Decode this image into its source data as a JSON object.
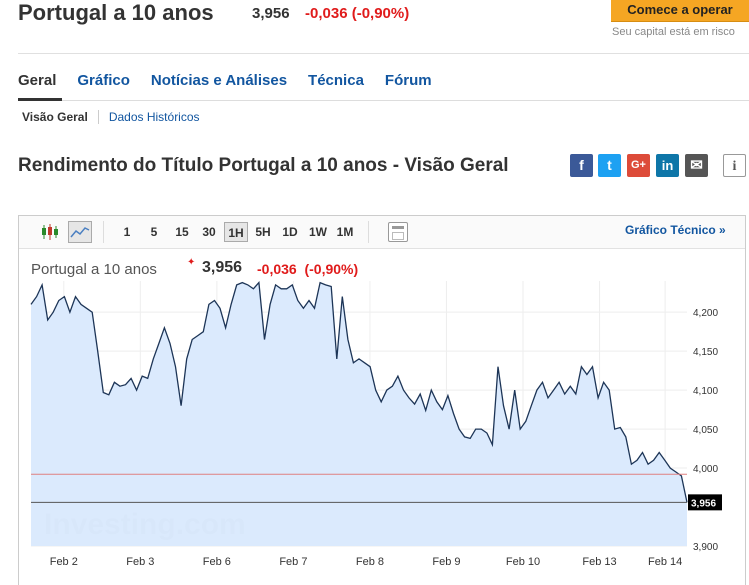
{
  "header": {
    "title": "Portugal a 10 anos",
    "price": "3,956",
    "change": "-0,036 (-0,90%)",
    "cta_label": "Comece a operar",
    "cta_sub": "Seu capital está em risco"
  },
  "tabs": [
    {
      "label": "Geral",
      "active": true
    },
    {
      "label": "Gráfico",
      "active": false
    },
    {
      "label": "Notícias e Análises",
      "active": false
    },
    {
      "label": "Técnica",
      "active": false
    },
    {
      "label": "Fórum",
      "active": false
    }
  ],
  "subnav": {
    "active": "Visão Geral",
    "link": "Dados Históricos"
  },
  "section": {
    "title": "Rendimento do Título Portugal a 10 anos - Visão Geral"
  },
  "share": [
    {
      "icon": "facebook-icon",
      "glyph": "f",
      "color": "#3b5998"
    },
    {
      "icon": "twitter-icon",
      "glyph": "t",
      "color": "#1da1f2"
    },
    {
      "icon": "google-plus-icon",
      "glyph": "G+",
      "color": "#dd4b39"
    },
    {
      "icon": "linkedin-icon",
      "glyph": "in",
      "color": "#0e76a8"
    },
    {
      "icon": "email-icon",
      "glyph": "✉",
      "color": "#555555"
    },
    {
      "icon": "info-icon",
      "glyph": "i",
      "color": "#ffffff"
    }
  ],
  "toolbar": {
    "chart_types": [
      "candlestick-icon",
      "area-chart-icon"
    ],
    "timeframes": [
      "1",
      "5",
      "15",
      "30",
      "1H",
      "5H",
      "1D",
      "1W",
      "1M"
    ],
    "selected_timeframe": "1H",
    "technical_link": "Gráfico Técnico »"
  },
  "legend": {
    "name": "Portugal a 10 anos",
    "price": "3,956",
    "change": "-0,036",
    "change_pct": "(-0,90%)"
  },
  "colors": {
    "accent": "#1256a0",
    "negative": "#e01b1b",
    "cta": "#f5a623",
    "area_fill": "#d9e9fd",
    "line": "#1d3557"
  },
  "watermark": "Investing.com",
  "chart_data": {
    "type": "area",
    "title": "",
    "xlabel": "",
    "ylabel": "",
    "x_tick_labels": [
      "Feb 2",
      "Feb 3",
      "Feb 6",
      "Feb 7",
      "Feb 8",
      "Feb 9",
      "Feb 10",
      "Feb 13",
      "Feb 14"
    ],
    "x_tick_positions": [
      3,
      10,
      17,
      24,
      31,
      38,
      45,
      52,
      58
    ],
    "y_ticks": [
      3.9,
      4.0,
      4.05,
      4.1,
      4.15,
      4.2
    ],
    "y_tick_labels": [
      "3,900",
      "4,000",
      "4,050",
      "4,100",
      "4,150",
      "4,200"
    ],
    "ylim": [
      3.9,
      4.24
    ],
    "xlim": [
      0,
      60
    ],
    "current_value": 3.956,
    "current_label": "3,956",
    "reference_value": 3.992,
    "grid": true,
    "series": [
      {
        "values": [
          4.21,
          4.22,
          4.235,
          4.19,
          4.2,
          4.215,
          4.22,
          4.2,
          4.22,
          4.21,
          4.205,
          4.2,
          4.15,
          4.097,
          4.094,
          4.11,
          4.105,
          4.107,
          4.115,
          4.1,
          4.118,
          4.115,
          4.14,
          4.16,
          4.18,
          4.16,
          4.13,
          4.08,
          4.14,
          4.165,
          4.17,
          4.175,
          4.21,
          4.215,
          4.205,
          4.18,
          4.21,
          4.235,
          4.238,
          4.235,
          4.23,
          4.238,
          4.165,
          4.21,
          4.235,
          4.23,
          4.23,
          4.235,
          4.215,
          4.205,
          4.215,
          4.205,
          4.238,
          4.235,
          4.233,
          4.14,
          4.22,
          4.165,
          4.135,
          4.14,
          4.135,
          4.13,
          4.1,
          4.085,
          4.1,
          4.105,
          4.118,
          4.1,
          4.09,
          4.082,
          4.095,
          4.074,
          4.1,
          4.085,
          4.075,
          4.093,
          4.07,
          4.05,
          4.04,
          4.038,
          4.05,
          4.05,
          4.045,
          4.03,
          4.13,
          4.08,
          4.05,
          4.1,
          4.05,
          4.06,
          4.08,
          4.1,
          4.11,
          4.09,
          4.1,
          4.11,
          4.095,
          4.105,
          4.095,
          4.13,
          4.12,
          4.13,
          4.09,
          4.11,
          4.1,
          4.05,
          4.052,
          4.04,
          4.005,
          4.01,
          4.02,
          4.005,
          4.01,
          4.02,
          4.01,
          4.0,
          3.995,
          3.99,
          3.956
        ]
      }
    ]
  }
}
